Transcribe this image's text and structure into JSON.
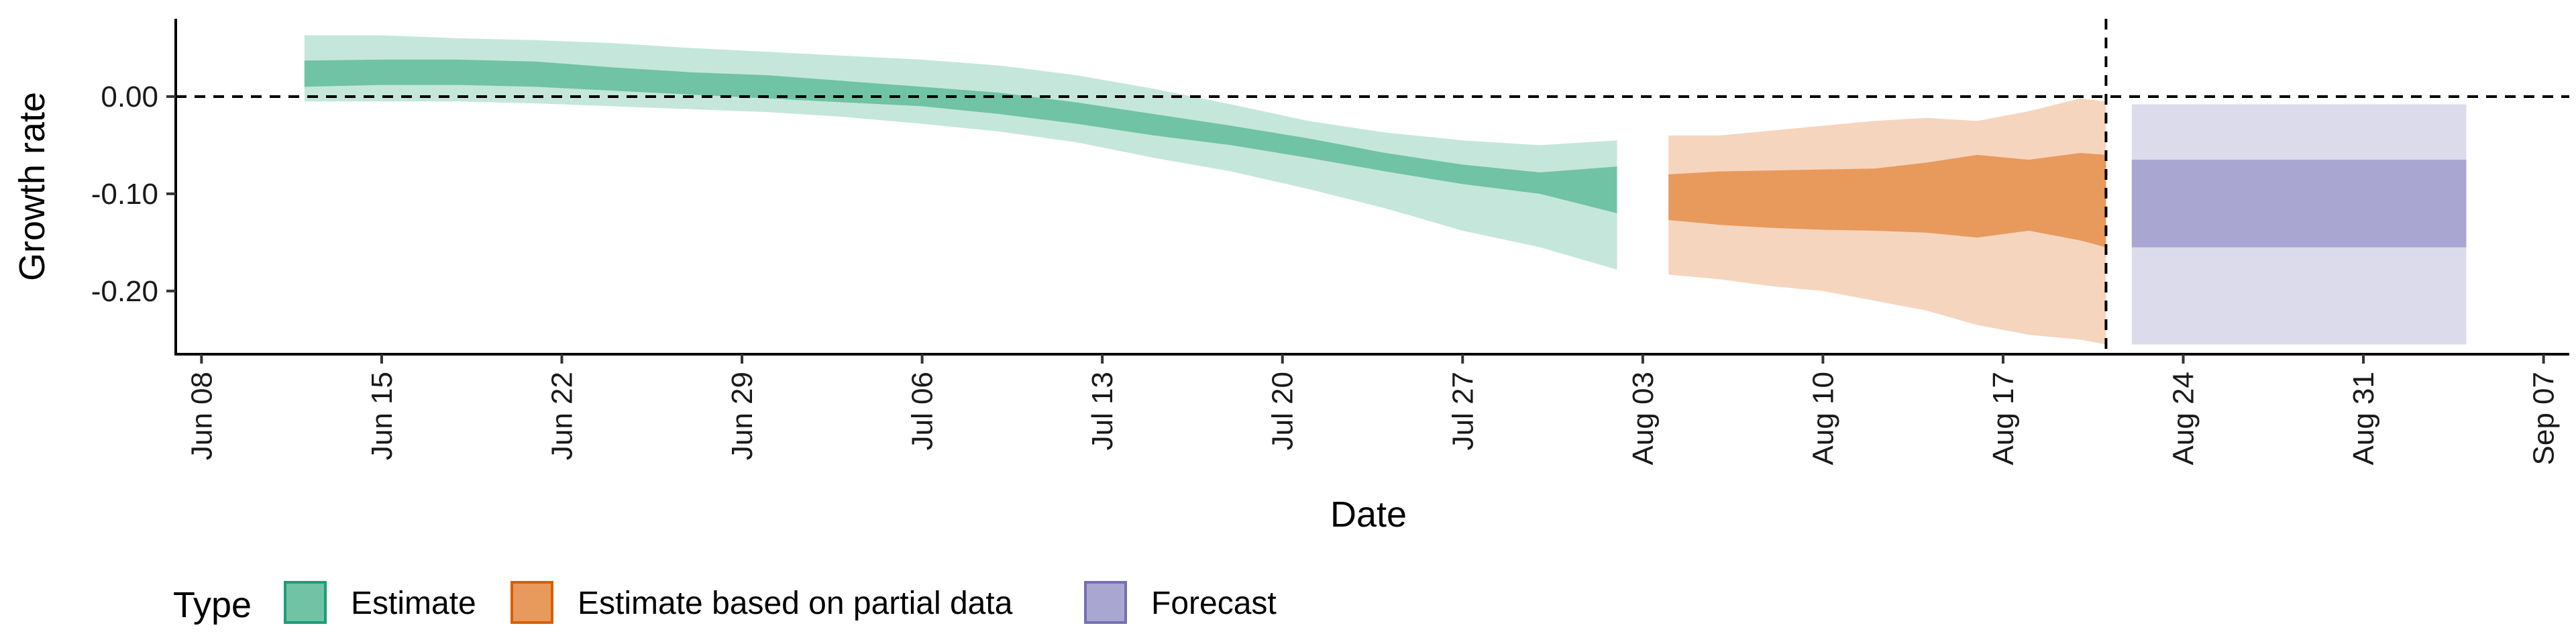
{
  "chart_data": {
    "type": "area",
    "xlabel": "Date",
    "ylabel": "Growth rate",
    "ylim": [
      -0.265,
      0.08
    ],
    "xlim": [
      "2020-06-07",
      "2020-09-08"
    ],
    "x_ticks": [
      {
        "date": "2020-06-08",
        "label": "Jun 08"
      },
      {
        "date": "2020-06-15",
        "label": "Jun 15"
      },
      {
        "date": "2020-06-22",
        "label": "Jun 22"
      },
      {
        "date": "2020-06-29",
        "label": "Jun 29"
      },
      {
        "date": "2020-07-06",
        "label": "Jul 06"
      },
      {
        "date": "2020-07-13",
        "label": "Jul 13"
      },
      {
        "date": "2020-07-20",
        "label": "Jul 20"
      },
      {
        "date": "2020-07-27",
        "label": "Jul 27"
      },
      {
        "date": "2020-08-03",
        "label": "Aug 03"
      },
      {
        "date": "2020-08-10",
        "label": "Aug 10"
      },
      {
        "date": "2020-08-17",
        "label": "Aug 17"
      },
      {
        "date": "2020-08-24",
        "label": "Aug 24"
      },
      {
        "date": "2020-08-31",
        "label": "Aug 31"
      },
      {
        "date": "2020-09-07",
        "label": "Sep 07"
      }
    ],
    "y_ticks": [
      {
        "value": 0.0,
        "label": "0.00"
      },
      {
        "value": -0.1,
        "label": "-0.10"
      },
      {
        "value": -0.2,
        "label": "-0.20"
      }
    ],
    "hline": 0,
    "vline": "2020-08-21",
    "grid": false,
    "legend": {
      "title": "Type",
      "position": "bottom",
      "items": [
        {
          "label": "Estimate",
          "fill": "#70c3a5",
          "stroke": "#1b9e77"
        },
        {
          "label": "Estimate based on partial data",
          "fill": "#e8995c",
          "stroke": "#d95f02"
        },
        {
          "label": "Forecast",
          "fill": "#a9a6d1",
          "stroke": "#7570b3"
        }
      ]
    },
    "series": [
      {
        "name": "Estimate",
        "inner_color": "#70c3a5",
        "outer_color": "#c5e7db",
        "x": [
          "2020-06-12",
          "2020-06-15",
          "2020-06-18",
          "2020-06-21",
          "2020-06-24",
          "2020-06-27",
          "2020-06-30",
          "2020-07-03",
          "2020-07-06",
          "2020-07-09",
          "2020-07-12",
          "2020-07-15",
          "2020-07-18",
          "2020-07-21",
          "2020-07-24",
          "2020-07-27",
          "2020-07-30",
          "2020-08-02"
        ],
        "inner_lower": [
          0.01,
          0.012,
          0.012,
          0.01,
          0.006,
          0.002,
          -0.002,
          -0.006,
          -0.01,
          -0.018,
          -0.028,
          -0.04,
          -0.05,
          -0.063,
          -0.077,
          -0.09,
          -0.1,
          -0.12
        ],
        "inner_upper": [
          0.037,
          0.038,
          0.038,
          0.036,
          0.03,
          0.025,
          0.022,
          0.016,
          0.01,
          0.004,
          -0.006,
          -0.018,
          -0.03,
          -0.043,
          -0.058,
          -0.07,
          -0.078,
          -0.072
        ],
        "outer_lower": [
          -0.005,
          -0.005,
          -0.005,
          -0.007,
          -0.01,
          -0.013,
          -0.016,
          -0.021,
          -0.028,
          -0.036,
          -0.047,
          -0.063,
          -0.077,
          -0.095,
          -0.115,
          -0.138,
          -0.155,
          -0.178
        ],
        "outer_upper": [
          0.063,
          0.063,
          0.06,
          0.058,
          0.055,
          0.05,
          0.046,
          0.042,
          0.038,
          0.032,
          0.022,
          0.008,
          -0.008,
          -0.025,
          -0.037,
          -0.045,
          -0.05,
          -0.045
        ]
      },
      {
        "name": "Estimate based on partial data",
        "inner_color": "#e8995c",
        "outer_color": "#f6d5be",
        "x": [
          "2020-08-04",
          "2020-08-06",
          "2020-08-08",
          "2020-08-10",
          "2020-08-12",
          "2020-08-14",
          "2020-08-16",
          "2020-08-18",
          "2020-08-20",
          "2020-08-21"
        ],
        "inner_lower": [
          -0.127,
          -0.132,
          -0.135,
          -0.137,
          -0.138,
          -0.14,
          -0.145,
          -0.138,
          -0.148,
          -0.155
        ],
        "inner_upper": [
          -0.08,
          -0.077,
          -0.076,
          -0.075,
          -0.074,
          -0.068,
          -0.06,
          -0.065,
          -0.058,
          -0.06
        ],
        "outer_lower": [
          -0.183,
          -0.188,
          -0.195,
          -0.2,
          -0.21,
          -0.22,
          -0.235,
          -0.245,
          -0.25,
          -0.255
        ],
        "outer_upper": [
          -0.04,
          -0.04,
          -0.035,
          -0.03,
          -0.025,
          -0.022,
          -0.025,
          -0.015,
          -0.002,
          -0.005
        ]
      },
      {
        "name": "Forecast",
        "inner_color": "#a9a6d1",
        "outer_color": "#dcdbeb",
        "x": [
          "2020-08-22",
          "2020-09-04"
        ],
        "inner_lower": [
          -0.155,
          -0.155
        ],
        "inner_upper": [
          -0.065,
          -0.065
        ],
        "outer_lower": [
          -0.255,
          -0.255
        ],
        "outer_upper": [
          -0.008,
          -0.008
        ]
      }
    ]
  }
}
